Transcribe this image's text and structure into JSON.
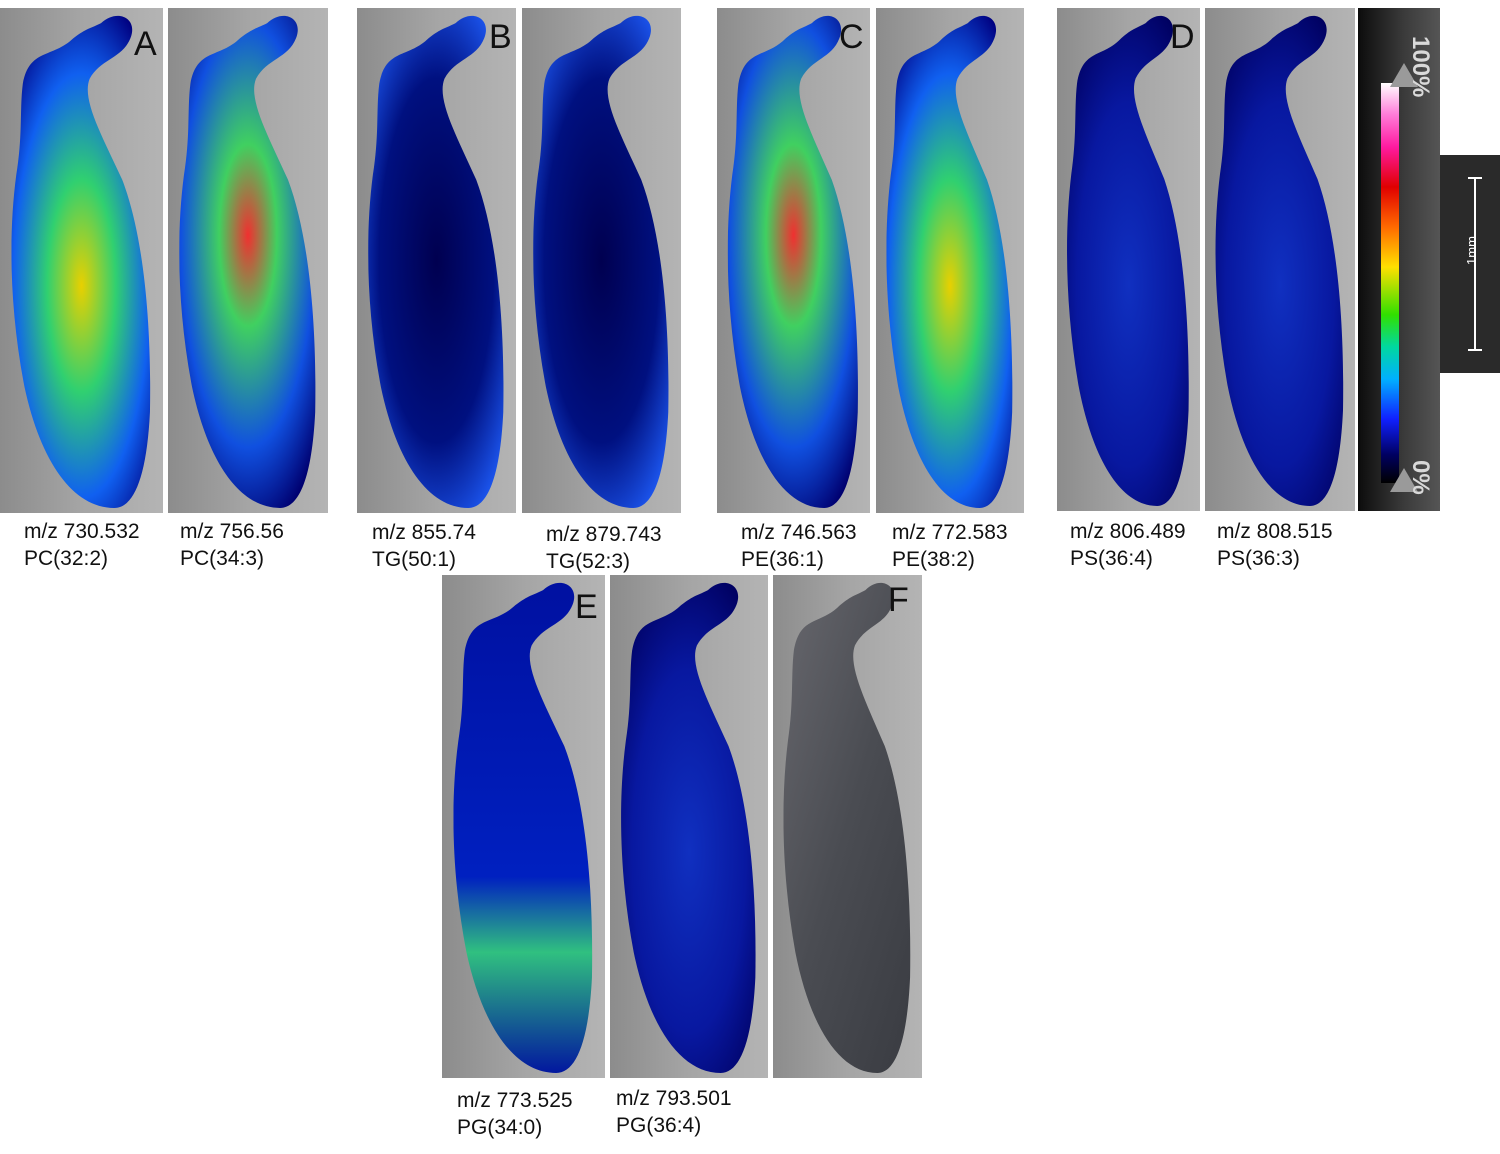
{
  "figure": {
    "panels": [
      {
        "letter": "A",
        "images": [
          {
            "mz": "m/z 730.532",
            "lipid": "PC(32:2)"
          },
          {
            "mz": "m/z 756.56",
            "lipid": "PC(34:3)"
          }
        ]
      },
      {
        "letter": "B",
        "images": [
          {
            "mz": "m/z 855.74",
            "lipid": "TG(50:1)"
          },
          {
            "mz": "m/z 879.743",
            "lipid": "TG(52:3)"
          }
        ]
      },
      {
        "letter": "C",
        "images": [
          {
            "mz": "m/z 746.563",
            "lipid": "PE(36:1)"
          },
          {
            "mz": "m/z 772.583",
            "lipid": "PE(38:2)"
          }
        ]
      },
      {
        "letter": "D",
        "images": [
          {
            "mz": "m/z 806.489",
            "lipid": "PS(36:4)"
          },
          {
            "mz": "m/z 808.515",
            "lipid": "PS(36:3)"
          }
        ]
      },
      {
        "letter": "E",
        "images": [
          {
            "mz": "m/z 773.525",
            "lipid": "PG(34:0)"
          },
          {
            "mz": "m/z 793.501",
            "lipid": "PG(36:4)"
          }
        ]
      },
      {
        "letter": "F",
        "images": []
      }
    ],
    "colorbar": {
      "max_label": "100%",
      "min_label": "0%"
    },
    "scale_bar": {
      "label": "1mm"
    }
  }
}
